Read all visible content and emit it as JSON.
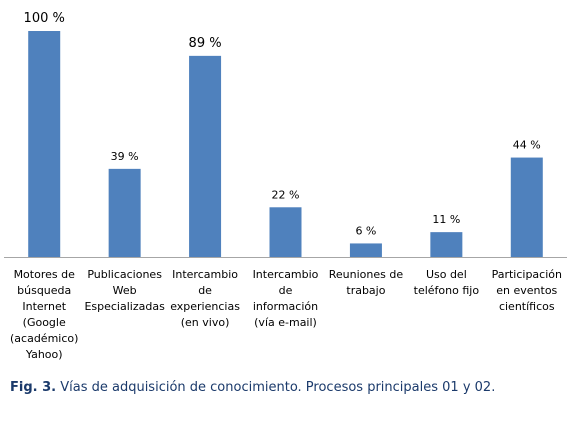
{
  "chart_data": {
    "type": "bar",
    "categories": [
      [
        "Motores de",
        "búsqueda",
        "Internet",
        "(Google",
        "(académico)",
        "Yahoo)"
      ],
      [
        "Publicaciones",
        "Web",
        "Especializadas"
      ],
      [
        "Intercambio",
        "de",
        "experiencias",
        "(en vivo)"
      ],
      [
        "Intercambio",
        "de",
        "información",
        "(vía e-mail)"
      ],
      [
        "Reuniones de",
        "trabajo"
      ],
      [
        "Uso del",
        "teléfono fijo"
      ],
      [
        "Participación",
        "en eventos",
        "científicos"
      ]
    ],
    "values": [
      100,
      39,
      89,
      22,
      6,
      11,
      44
    ],
    "data_labels": [
      "100 %",
      "39 %",
      "89 %",
      "22 %",
      "6 %",
      "11 %",
      "44 %"
    ],
    "ylim": [
      0,
      100
    ],
    "grid": false,
    "legend": "none",
    "bar_color": "#4f81bd",
    "axis_color": "#a6a6a6"
  },
  "caption": {
    "fig": "Fig. 3.",
    "text": " Vías de adquisición  de conocimiento. Procesos principales 01 y 02."
  }
}
